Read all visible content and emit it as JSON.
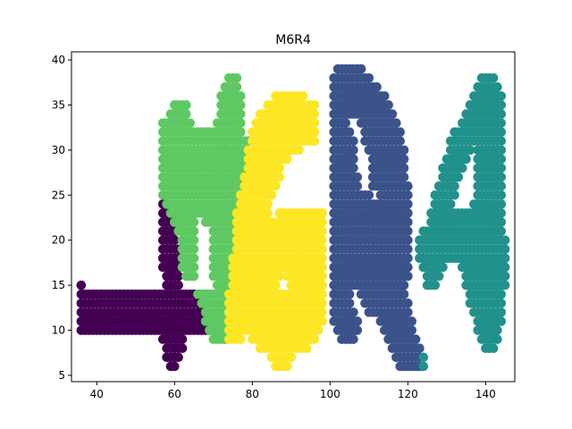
{
  "chart_data": {
    "type": "scatter",
    "title": "M6R4",
    "xlabel": "",
    "ylabel": "",
    "xlim": [
      33.5,
      147.5
    ],
    "ylim": [
      4.3,
      40.9
    ],
    "xticks": [
      40,
      60,
      80,
      100,
      120,
      140
    ],
    "yticks": [
      5,
      10,
      15,
      20,
      25,
      30,
      35,
      40
    ],
    "grid": false,
    "legend": "none",
    "point_spacing": {
      "x": 1,
      "y": 1
    },
    "series": [
      {
        "color": "#440154",
        "runs": [
          [
            15,
            36,
            36
          ],
          [
            14,
            36,
            68
          ],
          [
            13,
            36,
            68
          ],
          [
            12,
            36,
            68
          ],
          [
            11,
            36,
            69
          ],
          [
            10,
            36,
            69
          ],
          [
            24,
            57,
            58
          ],
          [
            23,
            57,
            59
          ],
          [
            22,
            57,
            59
          ],
          [
            21,
            57,
            60
          ],
          [
            20,
            57,
            60
          ],
          [
            19,
            57,
            61
          ],
          [
            18,
            57,
            61
          ],
          [
            17,
            57,
            61
          ],
          [
            16,
            58,
            61
          ],
          [
            15,
            58,
            61
          ],
          [
            9,
            57,
            62
          ],
          [
            8,
            58,
            62
          ],
          [
            7,
            58,
            61
          ],
          [
            6,
            59,
            60
          ]
        ]
      },
      {
        "color": "#5ec962",
        "runs": [
          [
            38,
            74,
            76
          ],
          [
            37,
            73,
            76
          ],
          [
            36,
            72,
            77
          ],
          [
            35,
            60,
            63
          ],
          [
            35,
            72,
            77
          ],
          [
            34,
            59,
            63
          ],
          [
            34,
            72,
            77
          ],
          [
            33,
            57,
            64
          ],
          [
            33,
            71,
            77
          ],
          [
            32,
            57,
            77
          ],
          [
            31,
            57,
            79
          ],
          [
            30,
            57,
            79
          ],
          [
            29,
            57,
            79
          ],
          [
            28,
            57,
            79
          ],
          [
            27,
            57,
            78
          ],
          [
            26,
            57,
            78
          ],
          [
            25,
            57,
            77
          ],
          [
            24,
            58,
            77
          ],
          [
            23,
            59,
            77
          ],
          [
            22,
            60,
            65
          ],
          [
            22,
            68,
            76
          ],
          [
            21,
            61,
            65
          ],
          [
            21,
            70,
            76
          ],
          [
            20,
            62,
            65
          ],
          [
            20,
            70,
            76
          ],
          [
            19,
            62,
            65
          ],
          [
            19,
            70,
            76
          ],
          [
            18,
            62,
            65
          ],
          [
            18,
            70,
            76
          ],
          [
            17,
            62,
            65
          ],
          [
            17,
            70,
            76
          ],
          [
            16,
            63,
            65
          ],
          [
            16,
            70,
            75
          ],
          [
            15,
            71,
            75
          ],
          [
            14,
            66,
            75
          ],
          [
            13,
            67,
            75
          ],
          [
            12,
            68,
            74
          ],
          [
            11,
            68,
            74
          ],
          [
            10,
            69,
            74
          ],
          [
            9,
            70,
            73
          ]
        ]
      },
      {
        "color": "#fde725",
        "runs": [
          [
            36,
            86,
            93
          ],
          [
            35,
            84,
            96
          ],
          [
            34,
            82,
            96
          ],
          [
            33,
            81,
            96
          ],
          [
            32,
            80,
            96
          ],
          [
            31,
            80,
            96
          ],
          [
            30,
            79,
            92
          ],
          [
            29,
            79,
            89
          ],
          [
            28,
            79,
            87
          ],
          [
            27,
            78,
            87
          ],
          [
            26,
            78,
            86
          ],
          [
            25,
            77,
            85
          ],
          [
            24,
            77,
            84
          ],
          [
            23,
            76,
            84
          ],
          [
            23,
            87,
            98
          ],
          [
            22,
            76,
            98
          ],
          [
            21,
            76,
            98
          ],
          [
            20,
            76,
            98
          ],
          [
            19,
            76,
            98
          ],
          [
            18,
            75,
            98
          ],
          [
            17,
            75,
            98
          ],
          [
            16,
            75,
            87
          ],
          [
            16,
            89,
            98
          ],
          [
            15,
            75,
            86
          ],
          [
            15,
            90,
            98
          ],
          [
            14,
            74,
            98
          ],
          [
            13,
            74,
            98
          ],
          [
            12,
            74,
            98
          ],
          [
            11,
            74,
            98
          ],
          [
            10,
            74,
            97
          ],
          [
            9,
            74,
            77
          ],
          [
            9,
            80,
            96
          ],
          [
            8,
            82,
            94
          ],
          [
            7,
            85,
            90
          ],
          [
            6,
            86,
            89
          ]
        ]
      },
      {
        "color": "#3b528b",
        "runs": [
          [
            39,
            102,
            108
          ],
          [
            38,
            101,
            110
          ],
          [
            37,
            101,
            112
          ],
          [
            36,
            101,
            114
          ],
          [
            35,
            101,
            115
          ],
          [
            34,
            101,
            116
          ],
          [
            33,
            101,
            104
          ],
          [
            33,
            108,
            117
          ],
          [
            32,
            101,
            105
          ],
          [
            32,
            109,
            118
          ],
          [
            31,
            101,
            106
          ],
          [
            31,
            109,
            118
          ],
          [
            30,
            101,
            106
          ],
          [
            30,
            110,
            119
          ],
          [
            29,
            101,
            106
          ],
          [
            29,
            111,
            119
          ],
          [
            28,
            101,
            106
          ],
          [
            28,
            111,
            119
          ],
          [
            27,
            101,
            107
          ],
          [
            27,
            111,
            119
          ],
          [
            26,
            101,
            107
          ],
          [
            26,
            111,
            120
          ],
          [
            25,
            101,
            110
          ],
          [
            25,
            113,
            120
          ],
          [
            24,
            101,
            120
          ],
          [
            23,
            101,
            120
          ],
          [
            22,
            101,
            120
          ],
          [
            21,
            101,
            120
          ],
          [
            20,
            101,
            120
          ],
          [
            19,
            101,
            120
          ],
          [
            18,
            101,
            120
          ],
          [
            17,
            101,
            120
          ],
          [
            16,
            101,
            120
          ],
          [
            15,
            101,
            119
          ],
          [
            14,
            101,
            105
          ],
          [
            14,
            108,
            119
          ],
          [
            13,
            101,
            105
          ],
          [
            13,
            109,
            120
          ],
          [
            12,
            101,
            106
          ],
          [
            12,
            110,
            120
          ],
          [
            11,
            101,
            107
          ],
          [
            11,
            113,
            121
          ],
          [
            10,
            102,
            107
          ],
          [
            10,
            114,
            121
          ],
          [
            9,
            103,
            106
          ],
          [
            9,
            115,
            122
          ],
          [
            8,
            116,
            123
          ],
          [
            7,
            117,
            123
          ],
          [
            6,
            118,
            123
          ]
        ]
      },
      {
        "color": "#21918c",
        "runs": [
          [
            38,
            139,
            142
          ],
          [
            37,
            138,
            143
          ],
          [
            36,
            137,
            144
          ],
          [
            35,
            136,
            144
          ],
          [
            34,
            135,
            144
          ],
          [
            33,
            134,
            144
          ],
          [
            32,
            132,
            144
          ],
          [
            31,
            131,
            144
          ],
          [
            30,
            131,
            136
          ],
          [
            30,
            138,
            144
          ],
          [
            29,
            130,
            135
          ],
          [
            29,
            138,
            144
          ],
          [
            28,
            129,
            134
          ],
          [
            28,
            138,
            144
          ],
          [
            27,
            129,
            133
          ],
          [
            27,
            138,
            144
          ],
          [
            26,
            128,
            132
          ],
          [
            26,
            138,
            144
          ],
          [
            25,
            127,
            132
          ],
          [
            25,
            138,
            144
          ],
          [
            24,
            127,
            131
          ],
          [
            24,
            137,
            144
          ],
          [
            23,
            126,
            144
          ],
          [
            22,
            126,
            144
          ],
          [
            21,
            124,
            144
          ],
          [
            20,
            123,
            145
          ],
          [
            19,
            123,
            145
          ],
          [
            18,
            123,
            145
          ],
          [
            17,
            124,
            129
          ],
          [
            17,
            134,
            145
          ],
          [
            16,
            125,
            128
          ],
          [
            16,
            135,
            145
          ],
          [
            15,
            125,
            127
          ],
          [
            15,
            135,
            145
          ],
          [
            14,
            136,
            144
          ],
          [
            13,
            136,
            144
          ],
          [
            12,
            137,
            144
          ],
          [
            11,
            138,
            144
          ],
          [
            10,
            138,
            143
          ],
          [
            9,
            139,
            143
          ],
          [
            8,
            140,
            142
          ],
          [
            7,
            124,
            124
          ],
          [
            6,
            124,
            124
          ]
        ]
      }
    ]
  }
}
